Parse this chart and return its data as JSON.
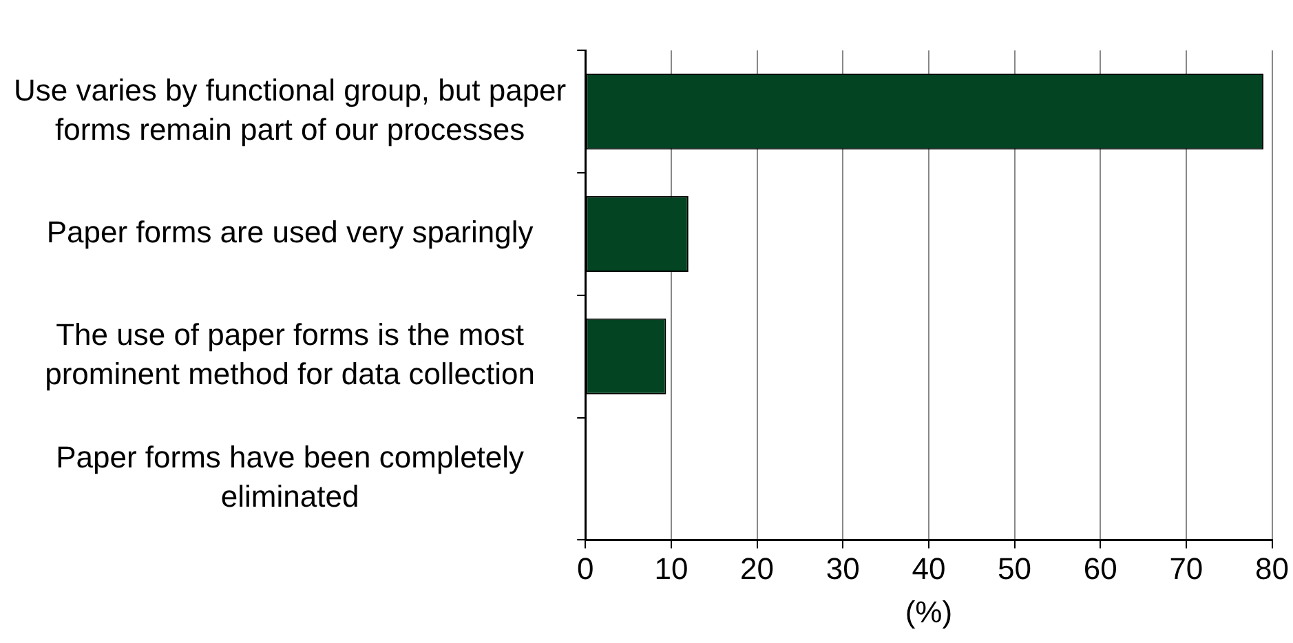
{
  "chart_data": {
    "type": "bar",
    "orientation": "horizontal",
    "categories": [
      "Use varies by functional group, but paper forms remain part of our processes",
      "Paper forms are used very sparingly",
      "The use of paper forms is the most prominent method for data collection",
      "Paper forms have been completely eliminated"
    ],
    "values": [
      79,
      12,
      9.4,
      0
    ],
    "color": "#034422",
    "xlabel": "(%)",
    "xlim": [
      0,
      80
    ],
    "xticks": [
      0,
      10,
      20,
      30,
      40,
      50,
      60,
      70,
      80
    ],
    "grid": "x",
    "legend": false
  }
}
